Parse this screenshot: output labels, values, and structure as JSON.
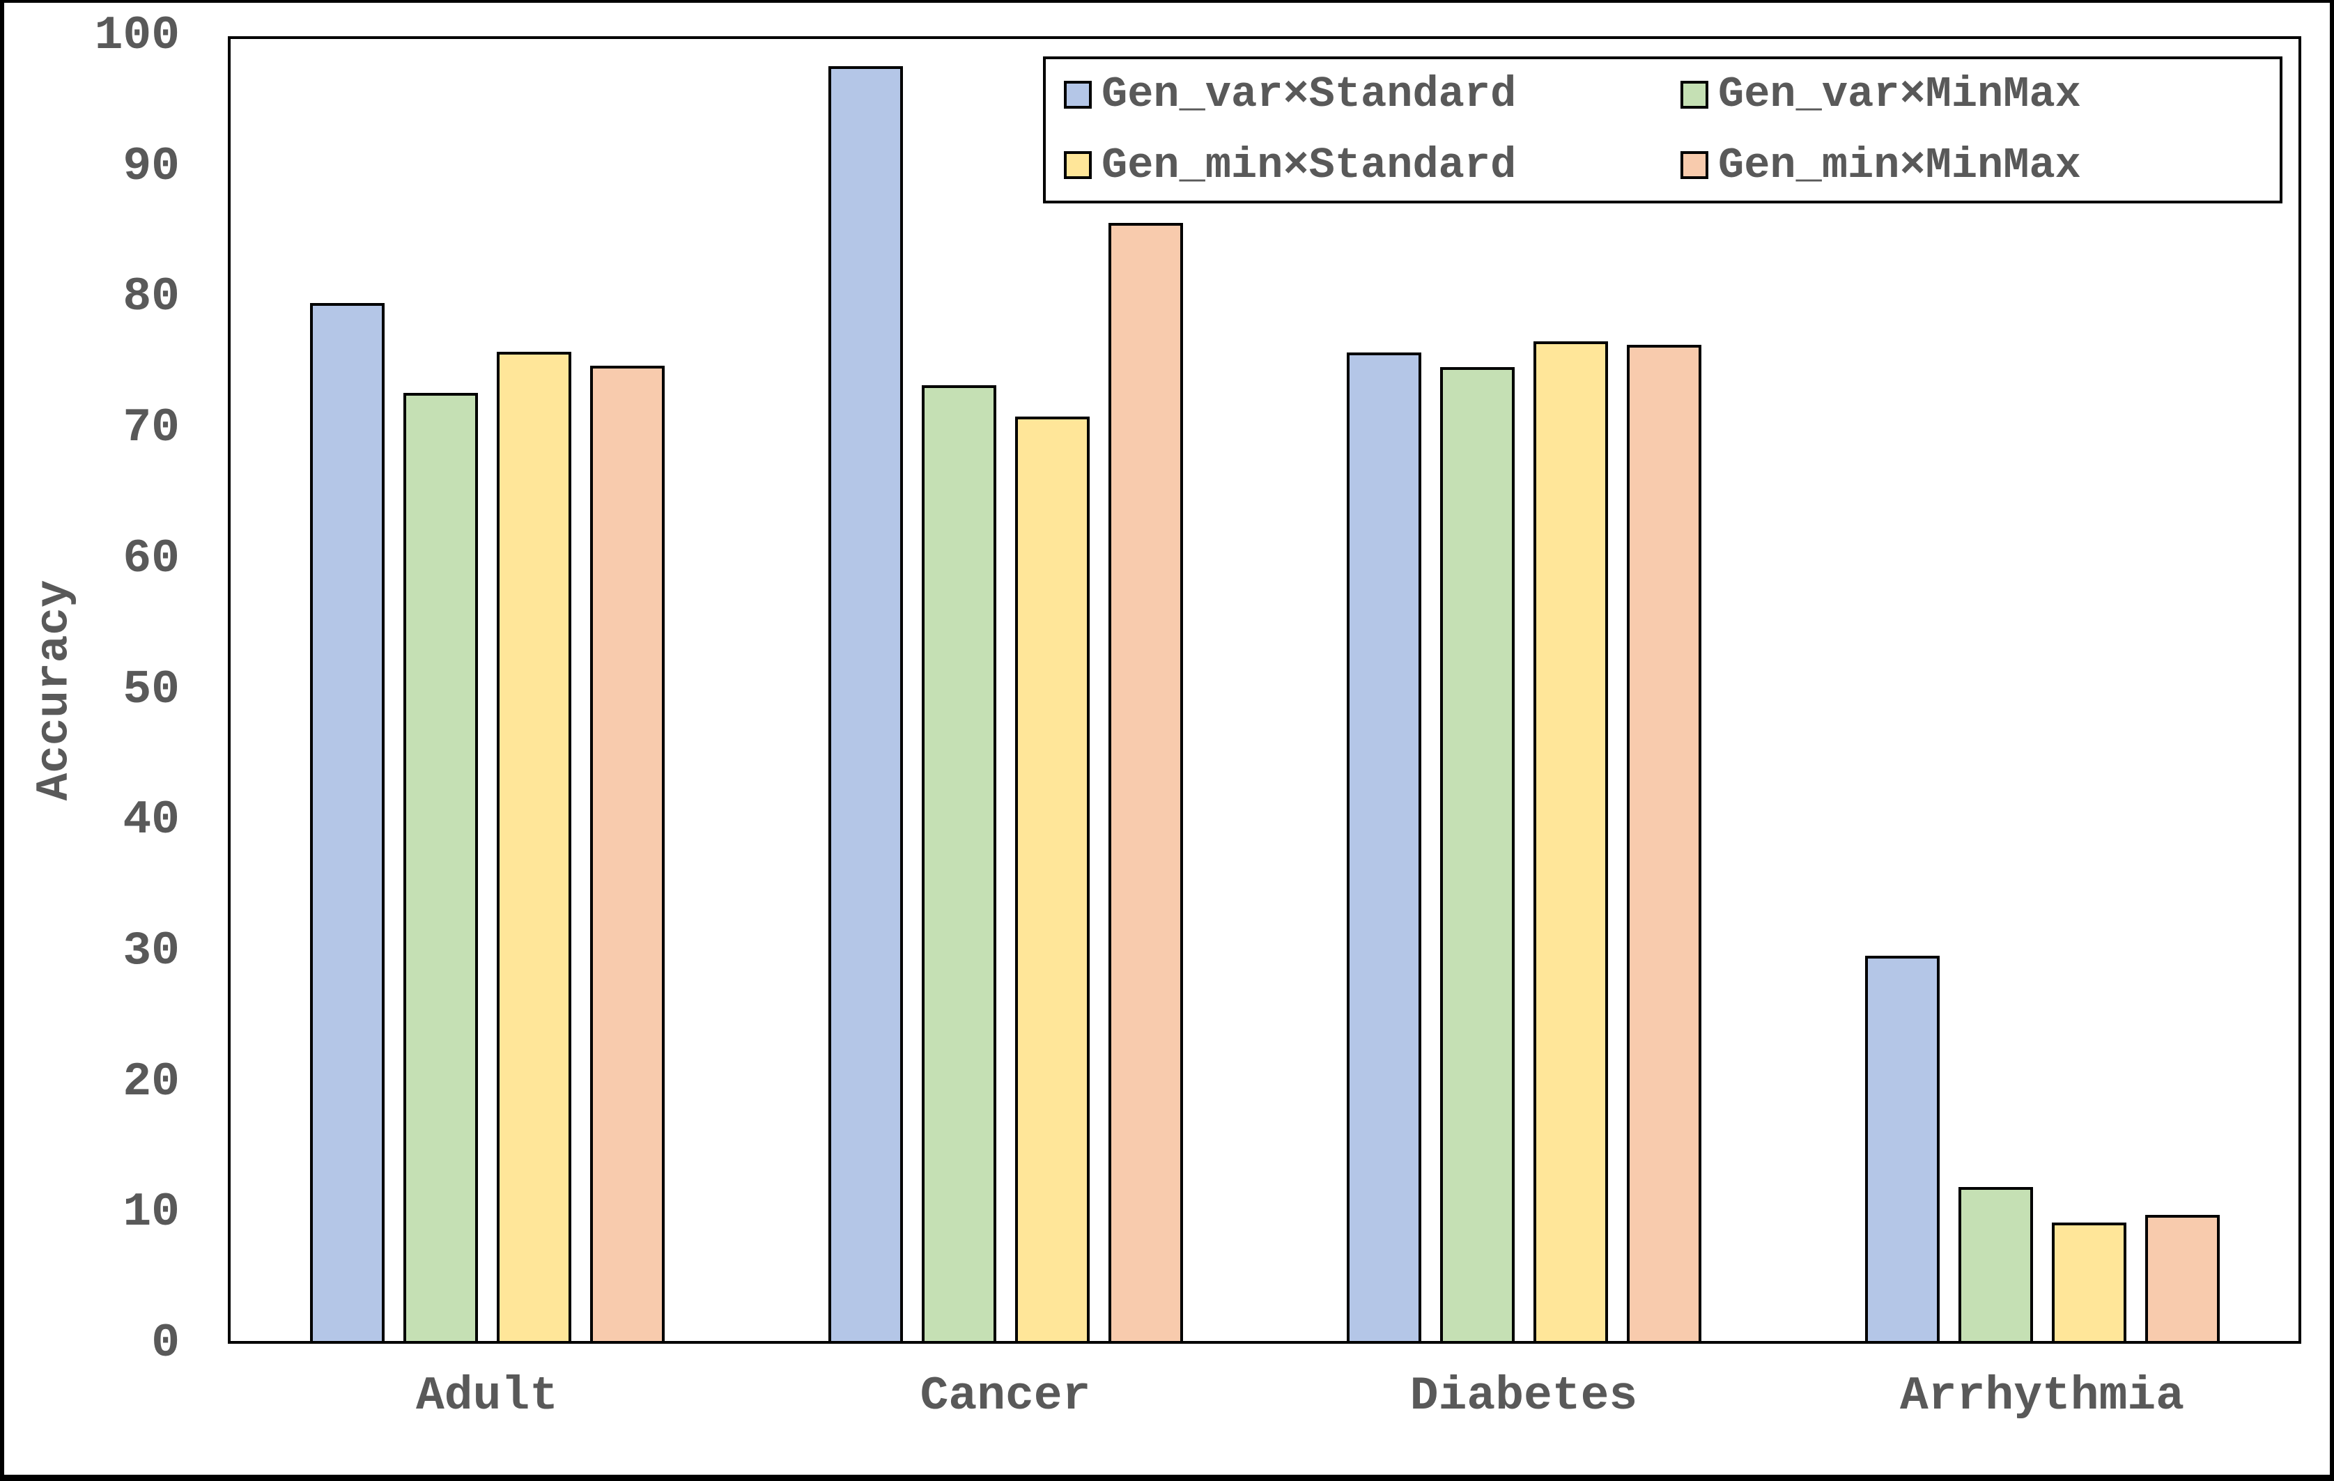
{
  "chart_data": {
    "type": "bar",
    "title": "",
    "xlabel": "",
    "ylabel": "Accuracy",
    "ylim": [
      0,
      100
    ],
    "yticks": [
      0,
      10,
      20,
      30,
      40,
      50,
      60,
      70,
      80,
      90,
      100
    ],
    "grid": false,
    "legend_position": "top-right",
    "categories": [
      "Adult",
      "Cancer",
      "Diabetes",
      "Arrhythmia"
    ],
    "series": [
      {
        "name": "Gen_var×Standard",
        "color": "#b4c6e7",
        "values": [
          79.7,
          97.9,
          75.9,
          29.6
        ]
      },
      {
        "name": "Gen_var×MinMax",
        "color": "#c5e0b4",
        "values": [
          72.8,
          73.4,
          74.8,
          11.8
        ]
      },
      {
        "name": "Gen_min×Standard",
        "color": "#ffe699",
        "values": [
          76.0,
          71.0,
          76.8,
          9.1
        ]
      },
      {
        "name": "Gen_min×MinMax",
        "color": "#f8cbad",
        "values": [
          74.9,
          85.9,
          76.5,
          9.7
        ]
      }
    ]
  },
  "colors": {
    "text": "#595959",
    "axis_border": "#000000",
    "background": "#ffffff"
  }
}
